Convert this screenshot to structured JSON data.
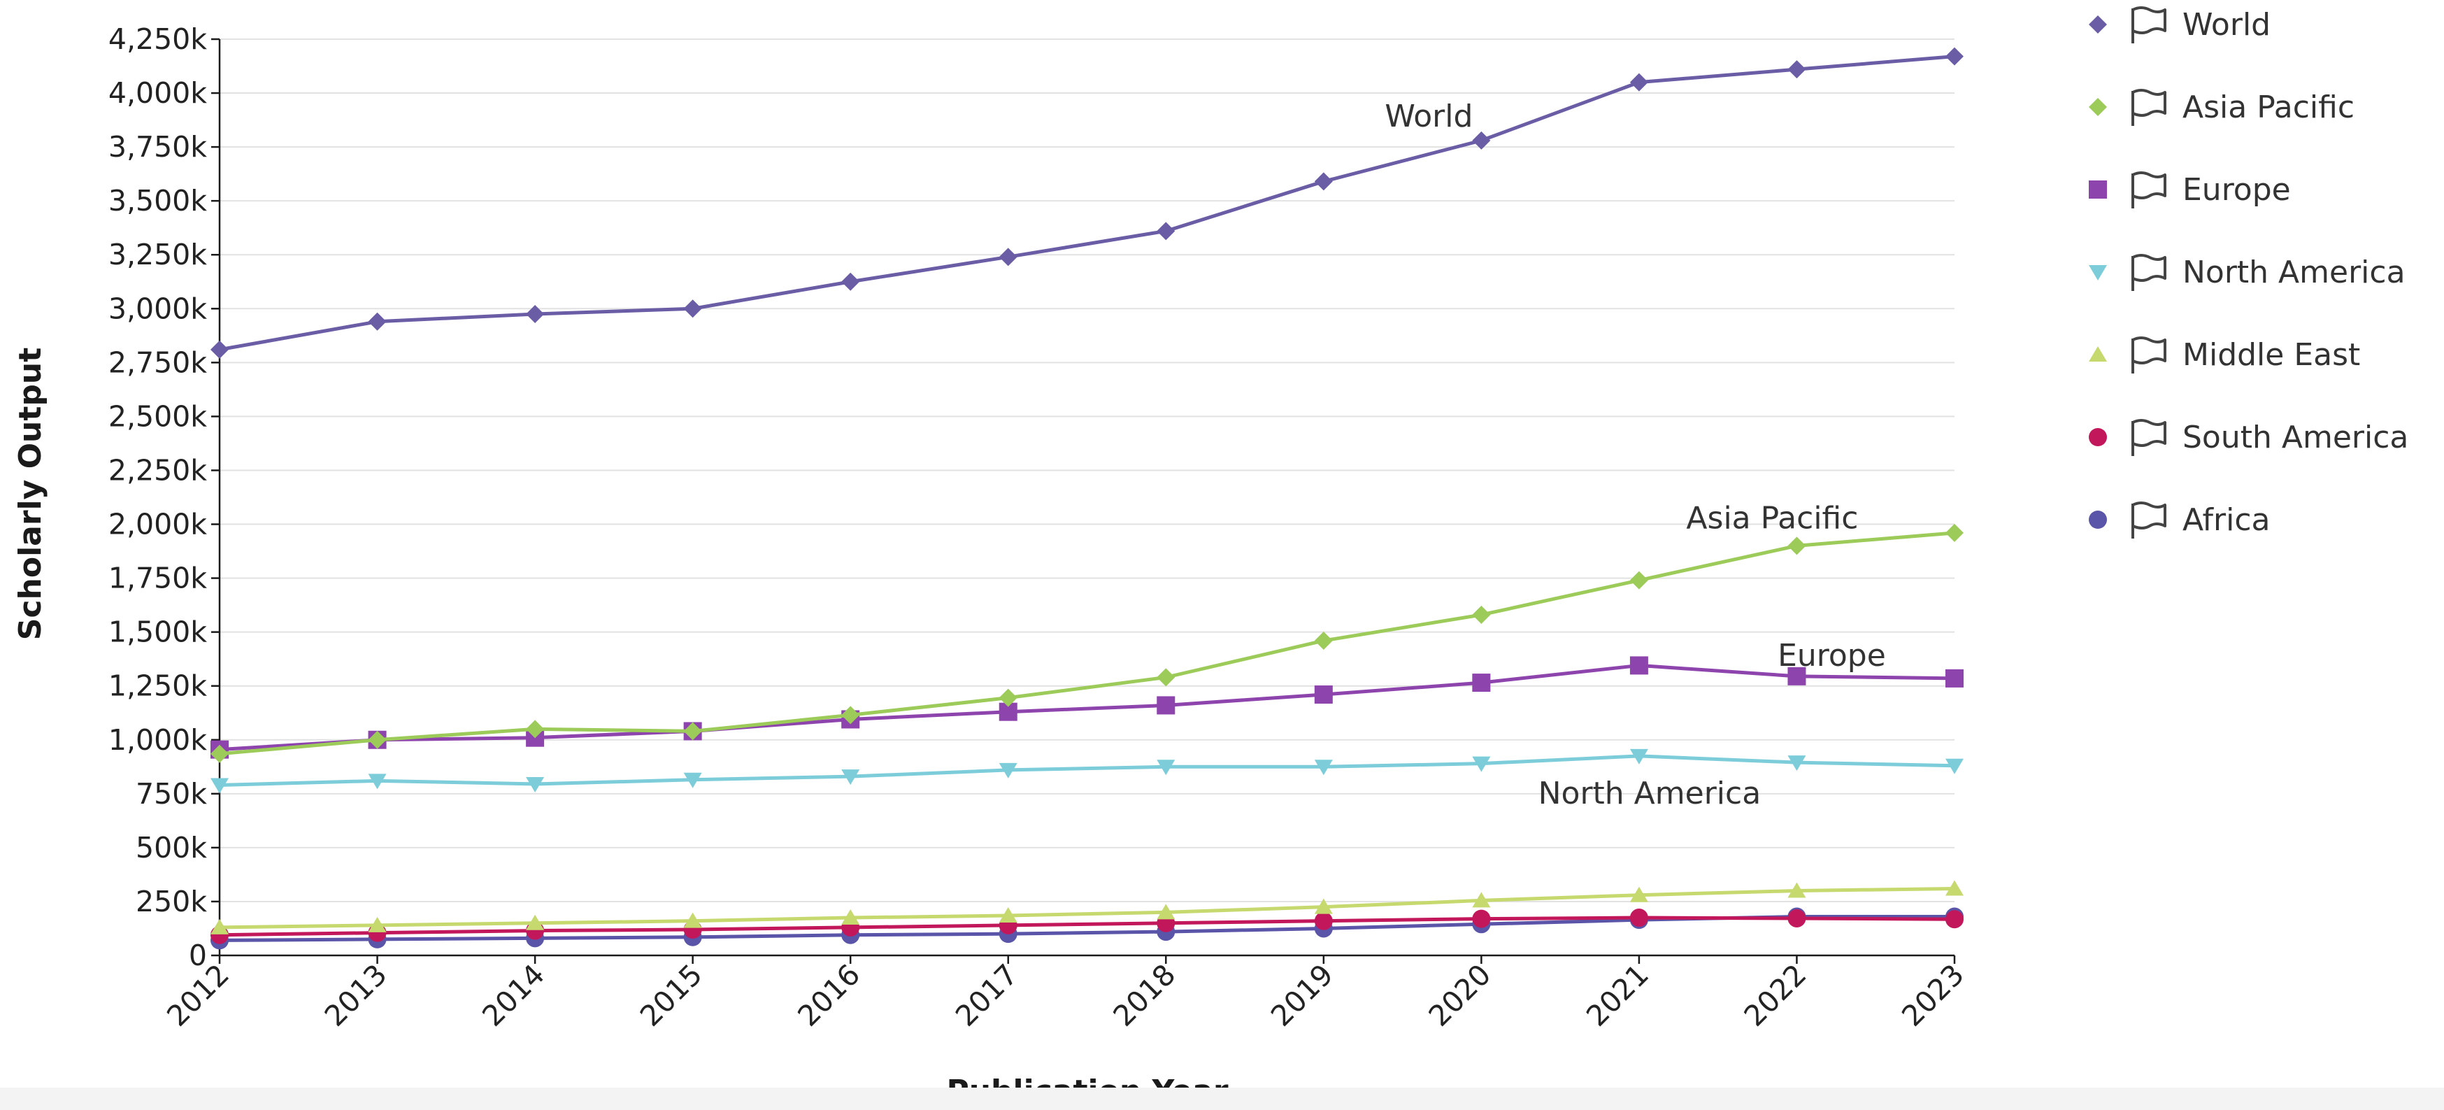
{
  "chart_data": {
    "type": "line",
    "xlabel": "Publication Year",
    "ylabel": "Scholarly Output",
    "x": [
      2012,
      2013,
      2014,
      2015,
      2016,
      2017,
      2018,
      2019,
      2020,
      2021,
      2022,
      2023
    ],
    "ylim": [
      0,
      4250000
    ],
    "y_ticks": [
      {
        "value": 0,
        "label": "0"
      },
      {
        "value": 250000,
        "label": "250k"
      },
      {
        "value": 500000,
        "label": "500k"
      },
      {
        "value": 750000,
        "label": "750k"
      },
      {
        "value": 1000000,
        "label": "1,000k"
      },
      {
        "value": 1250000,
        "label": "1,250k"
      },
      {
        "value": 1500000,
        "label": "1,500k"
      },
      {
        "value": 1750000,
        "label": "1,750k"
      },
      {
        "value": 2000000,
        "label": "2,000k"
      },
      {
        "value": 2250000,
        "label": "2,250k"
      },
      {
        "value": 2500000,
        "label": "2,500k"
      },
      {
        "value": 2750000,
        "label": "2,750k"
      },
      {
        "value": 3000000,
        "label": "3,000k"
      },
      {
        "value": 3250000,
        "label": "3,250k"
      },
      {
        "value": 3500000,
        "label": "3,500k"
      },
      {
        "value": 3750000,
        "label": "3,750k"
      },
      {
        "value": 4000000,
        "label": "4,000k"
      },
      {
        "value": 4250000,
        "label": "4,250k"
      }
    ],
    "grid": true,
    "legend_position": "right",
    "series": [
      {
        "name": "World",
        "color": "#6b5ca6",
        "marker": "diamond",
        "inline_label": true,
        "values": [
          2810000,
          2940000,
          2975000,
          3000000,
          3125000,
          3240000,
          3360000,
          3590000,
          3780000,
          4050000,
          4110000,
          4170000
        ]
      },
      {
        "name": "Asia Pacific",
        "color": "#9ccb59",
        "marker": "diamond",
        "inline_label": true,
        "values": [
          935000,
          1000000,
          1050000,
          1040000,
          1115000,
          1195000,
          1290000,
          1460000,
          1580000,
          1740000,
          1900000,
          1960000
        ]
      },
      {
        "name": "Europe",
        "color": "#8e44ad",
        "marker": "square",
        "inline_label": true,
        "values": [
          955000,
          1000000,
          1010000,
          1040000,
          1095000,
          1130000,
          1160000,
          1210000,
          1265000,
          1345000,
          1295000,
          1285000
        ]
      },
      {
        "name": "North America",
        "color": "#7ccdd9",
        "marker": "triangle-down",
        "inline_label": true,
        "values": [
          790000,
          810000,
          795000,
          815000,
          830000,
          860000,
          875000,
          875000,
          890000,
          925000,
          895000,
          880000
        ]
      },
      {
        "name": "Middle East",
        "color": "#c5d96f",
        "marker": "triangle-up",
        "inline_label": false,
        "values": [
          130000,
          140000,
          150000,
          160000,
          175000,
          185000,
          200000,
          225000,
          255000,
          280000,
          300000,
          310000
        ]
      },
      {
        "name": "South America",
        "color": "#c2185b",
        "marker": "circle",
        "inline_label": false,
        "values": [
          95000,
          105000,
          115000,
          120000,
          130000,
          140000,
          150000,
          160000,
          170000,
          175000,
          172000,
          168000
        ]
      },
      {
        "name": "Africa",
        "color": "#5a55a8",
        "marker": "circle",
        "inline_label": false,
        "values": [
          70000,
          75000,
          80000,
          85000,
          95000,
          100000,
          110000,
          125000,
          145000,
          165000,
          180000,
          180000
        ]
      }
    ]
  }
}
